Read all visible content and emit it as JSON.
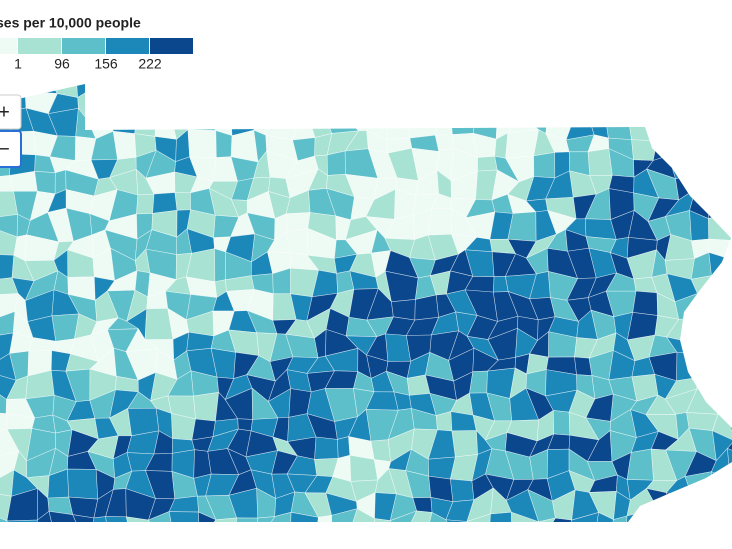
{
  "legend": {
    "title": "ses per 10,000 people",
    "colors": [
      "#eefaf4",
      "#a8e2d3",
      "#5cbfca",
      "#1c87b9",
      "#0a478d"
    ],
    "labels": [
      1,
      96,
      156,
      222
    ]
  },
  "controls": {
    "zoom_in": "+",
    "zoom_out": "−"
  }
}
